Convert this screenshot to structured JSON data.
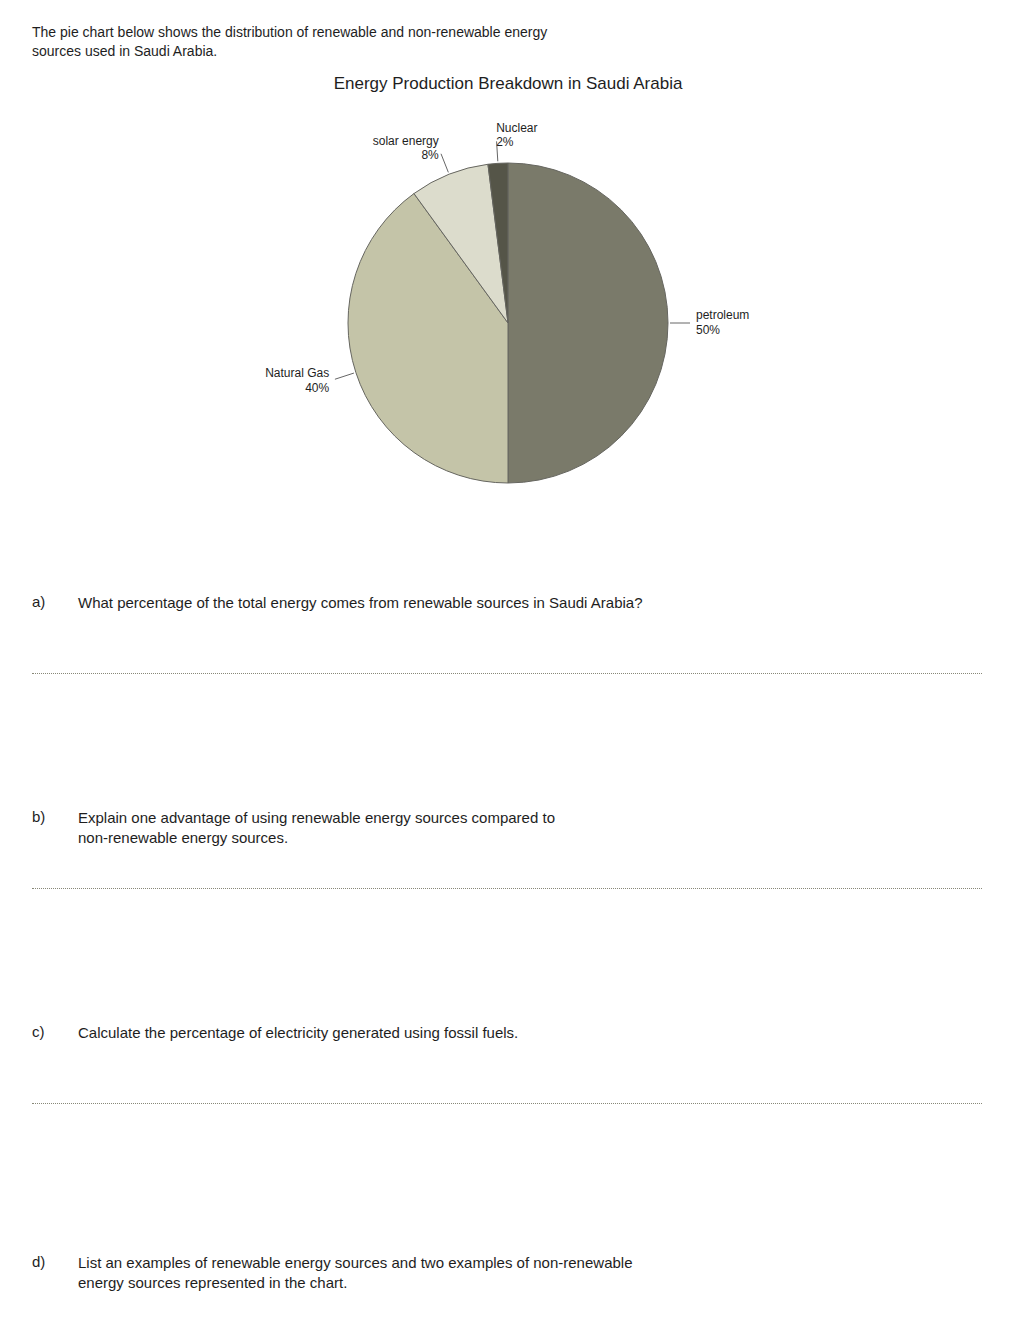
{
  "chart_data": {
    "type": "pie",
    "title": "Energy Production Breakdown in Saudi Arabia",
    "intro_lines": [
      "The pie chart below shows the distribution of renewable and non-renewable energy",
      "sources used in Saudi Arabia."
    ],
    "categories": [
      "petroleum",
      "Natural Gas",
      "solar energy",
      "Nuclear"
    ],
    "values": [
      50,
      40,
      8,
      2
    ],
    "value_labels": [
      "50%",
      "40%",
      "8%",
      "2%"
    ],
    "colors": [
      "#7a7a6a",
      "#c4c4a8",
      "#dcdccc",
      "#555548"
    ],
    "data_labels": true,
    "questions": [
      {
        "letter": "a)",
        "text": "What percentage of the total energy comes from renewable sources in Saudi Arabia?"
      },
      {
        "letter": "b)",
        "text": "Explain one advantage of using renewable energy sources compared to\nnon-renewable energy sources."
      },
      {
        "letter": "c)",
        "text": "Calculate the percentage of electricity generated using fossil fuels."
      },
      {
        "letter": "d)",
        "text": "List an examples of renewable energy sources and two examples of non-renewable\nenergy sources represented in the chart."
      }
    ]
  }
}
